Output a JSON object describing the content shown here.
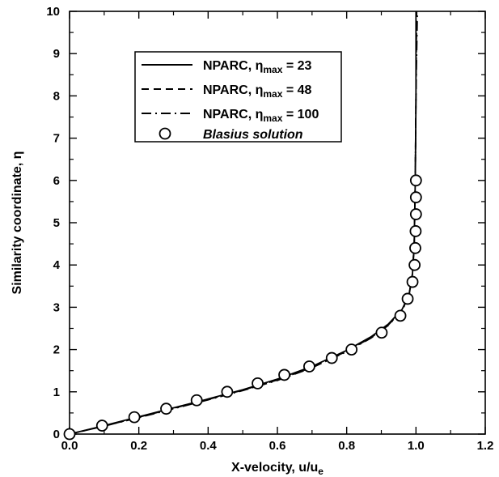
{
  "chart_data": {
    "type": "line",
    "xlabel": "X-velocity, u/u",
    "xlabel_subscript": "e",
    "ylabel": "Similarity coordinate, η",
    "xlim": [
      0.0,
      1.2
    ],
    "ylim": [
      0,
      10
    ],
    "xticks": [
      "0.0",
      "0.2",
      "0.4",
      "0.6",
      "0.8",
      "1.0",
      "1.2"
    ],
    "yticks": [
      "0",
      "1",
      "2",
      "3",
      "4",
      "5",
      "6",
      "7",
      "8",
      "9",
      "10"
    ],
    "grid": false,
    "legend_position": "top-center",
    "series": [
      {
        "name_prefix": "NPARC, η",
        "name_subscript": "max",
        "name_suffix": " = 23",
        "style": "solid",
        "points": [
          [
            0.0,
            0.0
          ],
          [
            0.1,
            0.2
          ],
          [
            0.2,
            0.41
          ],
          [
            0.3,
            0.62
          ],
          [
            0.4,
            0.83
          ],
          [
            0.5,
            1.05
          ],
          [
            0.6,
            1.3
          ],
          [
            0.7,
            1.6
          ],
          [
            0.8,
            1.98
          ],
          [
            0.87,
            2.3
          ],
          [
            0.92,
            2.6
          ],
          [
            0.96,
            2.95
          ],
          [
            0.98,
            3.3
          ],
          [
            0.99,
            3.8
          ],
          [
            0.995,
            4.5
          ],
          [
            0.998,
            6.0
          ],
          [
            1.0,
            8.0
          ],
          [
            1.0,
            10.0
          ]
        ]
      },
      {
        "name_prefix": "NPARC, η",
        "name_subscript": "max",
        "name_suffix": " = 48",
        "style": "dashed",
        "points": [
          [
            0.0,
            0.0
          ],
          [
            0.1,
            0.19
          ],
          [
            0.2,
            0.4
          ],
          [
            0.3,
            0.61
          ],
          [
            0.4,
            0.82
          ],
          [
            0.5,
            1.04
          ],
          [
            0.6,
            1.28
          ],
          [
            0.7,
            1.58
          ],
          [
            0.8,
            1.96
          ],
          [
            0.87,
            2.28
          ],
          [
            0.92,
            2.58
          ],
          [
            0.96,
            2.93
          ],
          [
            0.98,
            3.28
          ],
          [
            0.99,
            3.8
          ],
          [
            0.995,
            4.5
          ],
          [
            0.998,
            6.0
          ],
          [
            1.0,
            8.0
          ],
          [
            1.002,
            10.0
          ]
        ]
      },
      {
        "name_prefix": "NPARC, η",
        "name_subscript": "max",
        "name_suffix": " = 100",
        "style": "dashdot",
        "points": [
          [
            0.0,
            0.0
          ],
          [
            0.1,
            0.19
          ],
          [
            0.2,
            0.39
          ],
          [
            0.3,
            0.6
          ],
          [
            0.4,
            0.81
          ],
          [
            0.5,
            1.03
          ],
          [
            0.6,
            1.27
          ],
          [
            0.7,
            1.57
          ],
          [
            0.8,
            1.95
          ],
          [
            0.87,
            2.27
          ],
          [
            0.92,
            2.57
          ],
          [
            0.96,
            2.92
          ],
          [
            0.98,
            3.27
          ],
          [
            0.99,
            3.8
          ],
          [
            0.995,
            4.5
          ],
          [
            0.998,
            6.0
          ],
          [
            1.0,
            8.0
          ],
          [
            1.004,
            10.0
          ]
        ]
      },
      {
        "name": "Blasius solution",
        "style": "circles",
        "points": [
          [
            0.0,
            0.0
          ],
          [
            0.094,
            0.2
          ],
          [
            0.187,
            0.4
          ],
          [
            0.279,
            0.6
          ],
          [
            0.367,
            0.8
          ],
          [
            0.455,
            1.0
          ],
          [
            0.543,
            1.2
          ],
          [
            0.62,
            1.4
          ],
          [
            0.692,
            1.6
          ],
          [
            0.757,
            1.8
          ],
          [
            0.814,
            2.0
          ],
          [
            0.901,
            2.4
          ],
          [
            0.955,
            2.8
          ],
          [
            0.976,
            3.2
          ],
          [
            0.99,
            3.6
          ],
          [
            0.996,
            4.0
          ],
          [
            0.998,
            4.4
          ],
          [
            0.999,
            4.8
          ],
          [
            1.0,
            5.2
          ],
          [
            1.0,
            5.6
          ],
          [
            1.0,
            6.0
          ]
        ]
      }
    ]
  }
}
